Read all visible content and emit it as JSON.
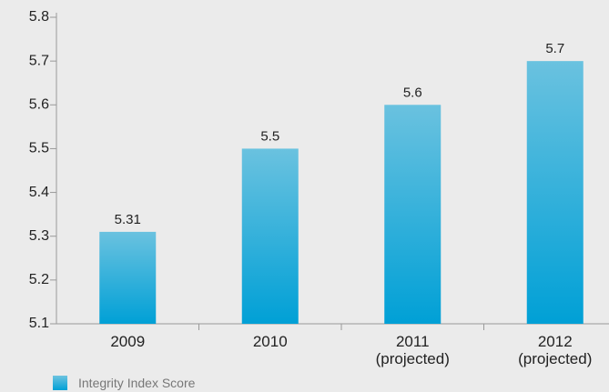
{
  "chart_data": {
    "type": "bar",
    "categories": [
      "2009",
      "2010",
      "2011 (projected)",
      "2012 (projected)"
    ],
    "series": [
      {
        "name": "Integrity Index Score",
        "color": "#00a0d6",
        "values": [
          5.31,
          5.5,
          5.6,
          5.7
        ]
      }
    ],
    "ylim": [
      5.1,
      5.8
    ],
    "yticks": [
      5.1,
      5.2,
      5.3,
      5.4,
      5.5,
      5.6,
      5.7,
      5.8
    ],
    "grid": false,
    "legend": "bottom-left"
  }
}
